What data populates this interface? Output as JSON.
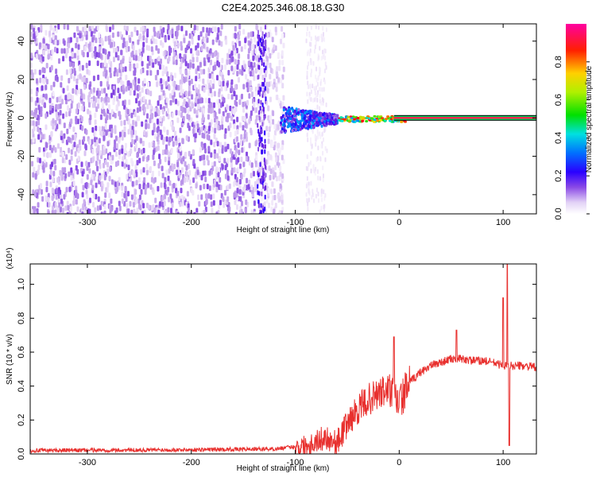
{
  "title": "C2E4.2025.346.08.18.G30",
  "colors": {
    "snr_line": "#e8302e",
    "colormap": [
      "#ffffff",
      "#e6d6f6",
      "#b48ce8",
      "#6a1fe0",
      "#2a00ff",
      "#0080ff",
      "#00e0e0",
      "#00e000",
      "#ffe000",
      "#ff0000",
      "#ff00a0"
    ]
  },
  "chart_data": [
    {
      "type": "heatmap",
      "name": "spectrogram",
      "xlabel": "Height of straight line (km)",
      "ylabel": "Frequency (Hz)",
      "xlim": [
        -355,
        132
      ],
      "ylim": [
        -50,
        49
      ],
      "xticks": [
        -300,
        -200,
        -100,
        0,
        100
      ],
      "yticks": [
        -40,
        -20,
        0,
        20,
        40
      ],
      "colorbar": {
        "label": "Normalized spectral amplitude",
        "range": [
          0.0,
          1.0
        ],
        "ticks": [
          "0.0",
          "0.2",
          "0.4",
          "0.6",
          "0.8"
        ]
      },
      "features": [
        {
          "desc": "broadband noise",
          "x_range": [
            -355,
            -115
          ],
          "amplitude": 0.25
        },
        {
          "desc": "carrier tone",
          "x_range": [
            -60,
            132
          ],
          "freq_hz": 0,
          "amplitude": 1.0
        },
        {
          "desc": "transition",
          "x_range": [
            -115,
            -60
          ],
          "freq_hz": 0,
          "amplitude": 0.5
        }
      ]
    },
    {
      "type": "line",
      "name": "snr",
      "xlabel": "Height of straight line (km)",
      "ylabel": "SNR (10 * v/v)",
      "scale_label": "(x10⁴)",
      "xlim": [
        -355,
        132
      ],
      "ylim": [
        0,
        1.12
      ],
      "xticks": [
        -300,
        -200,
        -100,
        0,
        100
      ],
      "yticks": [
        "0.0",
        "0.2",
        "0.4",
        "0.6",
        "0.8",
        "1.0"
      ],
      "series": [
        {
          "x": [
            -355,
            -200,
            -120,
            -90,
            -70,
            -60,
            -50,
            -40,
            -30,
            -20,
            -10,
            0,
            10,
            20,
            30,
            40,
            50,
            60,
            70,
            80,
            90,
            100,
            110,
            120,
            132
          ],
          "y": [
            0.02,
            0.025,
            0.03,
            0.05,
            0.1,
            0.06,
            0.18,
            0.26,
            0.32,
            0.35,
            0.38,
            0.3,
            0.42,
            0.48,
            0.52,
            0.54,
            0.56,
            0.56,
            0.55,
            0.55,
            0.54,
            0.52,
            0.52,
            0.52,
            0.51
          ]
        }
      ],
      "spikes": [
        {
          "x": -5,
          "y": 0.69
        },
        {
          "x": 55,
          "y": 0.73
        },
        {
          "x": 100,
          "y": 0.92
        },
        {
          "x": 104,
          "y": 1.12
        },
        {
          "x": 106,
          "y": 0.05
        }
      ]
    }
  ]
}
